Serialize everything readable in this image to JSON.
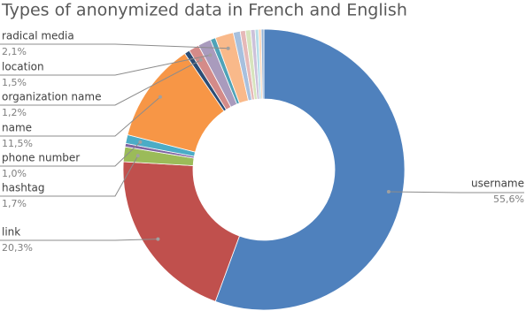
{
  "chart_data": {
    "type": "donut",
    "title": "Types of anonymized data in French and English",
    "categories": [
      "username",
      "link",
      "hashtag",
      null,
      "phone number",
      "name",
      null,
      "organization name",
      "location",
      null,
      "radical media",
      null,
      null,
      null,
      null,
      null,
      null,
      null
    ],
    "values": [
      55.6,
      20.3,
      1.7,
      0.4,
      1.0,
      11.5,
      0.6,
      1.2,
      1.5,
      0.6,
      2.1,
      0.8,
      0.6,
      0.6,
      0.5,
      0.4,
      0.3,
      0.3
    ],
    "value_labels": [
      "55,6%",
      "20,3%",
      "1,7%",
      null,
      "1,0%",
      "11,5%",
      null,
      "1,2%",
      "1,5%",
      null,
      "2,1%",
      null,
      null,
      null,
      null,
      null,
      null,
      null
    ],
    "colors": [
      "#4f81bd",
      "#c0504d",
      "#9bbb59",
      "#8064a2",
      "#4bacc6",
      "#f79646",
      "#2c4d75",
      "#d48b89",
      "#a99bbd",
      "#4fa3b8",
      "#f9b98a",
      "#a7c0de",
      "#e6b9b8",
      "#d7e4bd",
      "#ccc1da",
      "#b7dee8",
      "#fcd5b5",
      "#95b3d7"
    ]
  }
}
